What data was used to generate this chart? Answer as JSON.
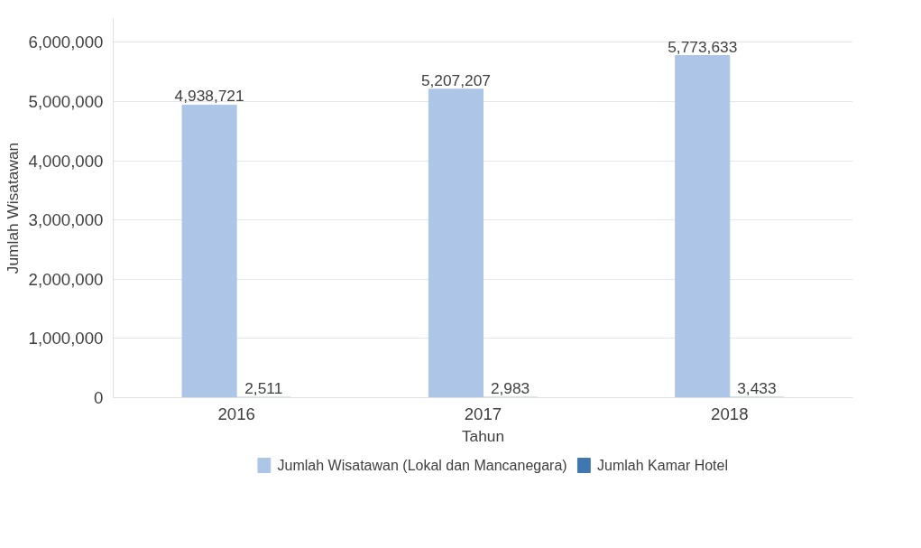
{
  "chart_data": {
    "type": "bar",
    "xlabel": "Tahun",
    "ylabel": "Jumlah Wisatawan",
    "categories": [
      "2016",
      "2017",
      "2018"
    ],
    "series": [
      {
        "name": "Jumlah Wisatawan (Lokal dan Mancanegara)",
        "color": "#adc5e7",
        "values": [
          4938721,
          5207207,
          5773633
        ],
        "value_labels": [
          "4,938,721",
          "5,207,207",
          "5,773,633"
        ]
      },
      {
        "name": "Jumlah Kamar Hotel",
        "color": "#3f78b0",
        "values": [
          2511,
          2983,
          3433
        ],
        "value_labels": [
          "2,511",
          "2,983",
          "3,433"
        ]
      }
    ],
    "ylim": [
      0,
      6400000
    ],
    "yticks": [
      0,
      {
        "value": 1000000,
        "label": "1,000,000"
      },
      {
        "value": 2000000,
        "label": "2,000,000"
      },
      {
        "value": 3000000,
        "label": "3,000,000"
      },
      {
        "value": 4000000,
        "label": "4,000,000"
      },
      {
        "value": 5000000,
        "label": "5,000,000"
      },
      {
        "value": 6000000,
        "label": "6,000,000"
      }
    ],
    "grid": "y",
    "legend": "bottom",
    "data_labels": true
  }
}
